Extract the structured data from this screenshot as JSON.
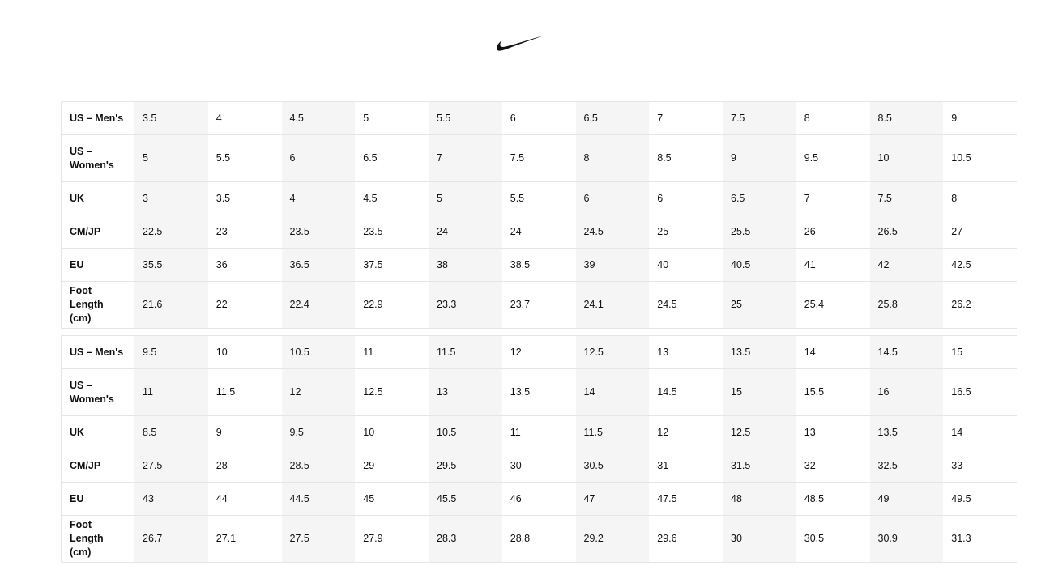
{
  "tables": [
    {
      "rows": [
        {
          "label": "US – Men's",
          "values": [
            3.5,
            4,
            4.5,
            5,
            5.5,
            6,
            6.5,
            7,
            7.5,
            8,
            8.5,
            9
          ]
        },
        {
          "label": "US – Women's",
          "values": [
            5,
            5.5,
            6,
            6.5,
            7,
            7.5,
            8,
            8.5,
            9,
            9.5,
            10,
            10.5
          ]
        },
        {
          "label": "UK",
          "values": [
            3,
            3.5,
            4,
            4.5,
            5,
            5.5,
            6,
            6,
            6.5,
            7,
            7.5,
            8
          ]
        },
        {
          "label": "CM/JP",
          "values": [
            22.5,
            23,
            23.5,
            23.5,
            24,
            24,
            24.5,
            25,
            25.5,
            26,
            26.5,
            27
          ]
        },
        {
          "label": "EU",
          "values": [
            35.5,
            36,
            36.5,
            37.5,
            38,
            38.5,
            39,
            40,
            40.5,
            41,
            42,
            42.5
          ]
        },
        {
          "label": "Foot Length (cm)",
          "values": [
            21.6,
            22,
            22.4,
            22.9,
            23.3,
            23.7,
            24.1,
            24.5,
            25,
            25.4,
            25.8,
            26.2
          ]
        }
      ]
    },
    {
      "rows": [
        {
          "label": "US – Men's",
          "values": [
            9.5,
            10,
            10.5,
            11,
            11.5,
            12,
            12.5,
            13,
            13.5,
            14,
            14.5,
            15
          ]
        },
        {
          "label": "US – Women's",
          "values": [
            11,
            11.5,
            12,
            12.5,
            13,
            13.5,
            14,
            14.5,
            15,
            15.5,
            16,
            16.5
          ]
        },
        {
          "label": "UK",
          "values": [
            8.5,
            9,
            9.5,
            10,
            10.5,
            11,
            11.5,
            12,
            12.5,
            13,
            13.5,
            14
          ]
        },
        {
          "label": "CM/JP",
          "values": [
            27.5,
            28,
            28.5,
            29,
            29.5,
            30,
            30.5,
            31,
            31.5,
            32,
            32.5,
            33
          ]
        },
        {
          "label": "EU",
          "values": [
            43,
            44,
            44.5,
            45,
            45.5,
            46,
            47,
            47.5,
            48,
            48.5,
            49,
            49.5
          ]
        },
        {
          "label": "Foot Length (cm)",
          "values": [
            26.7,
            27.1,
            27.5,
            27.9,
            28.3,
            28.8,
            29.2,
            29.6,
            30,
            30.5,
            30.9,
            31.3
          ]
        }
      ]
    }
  ]
}
